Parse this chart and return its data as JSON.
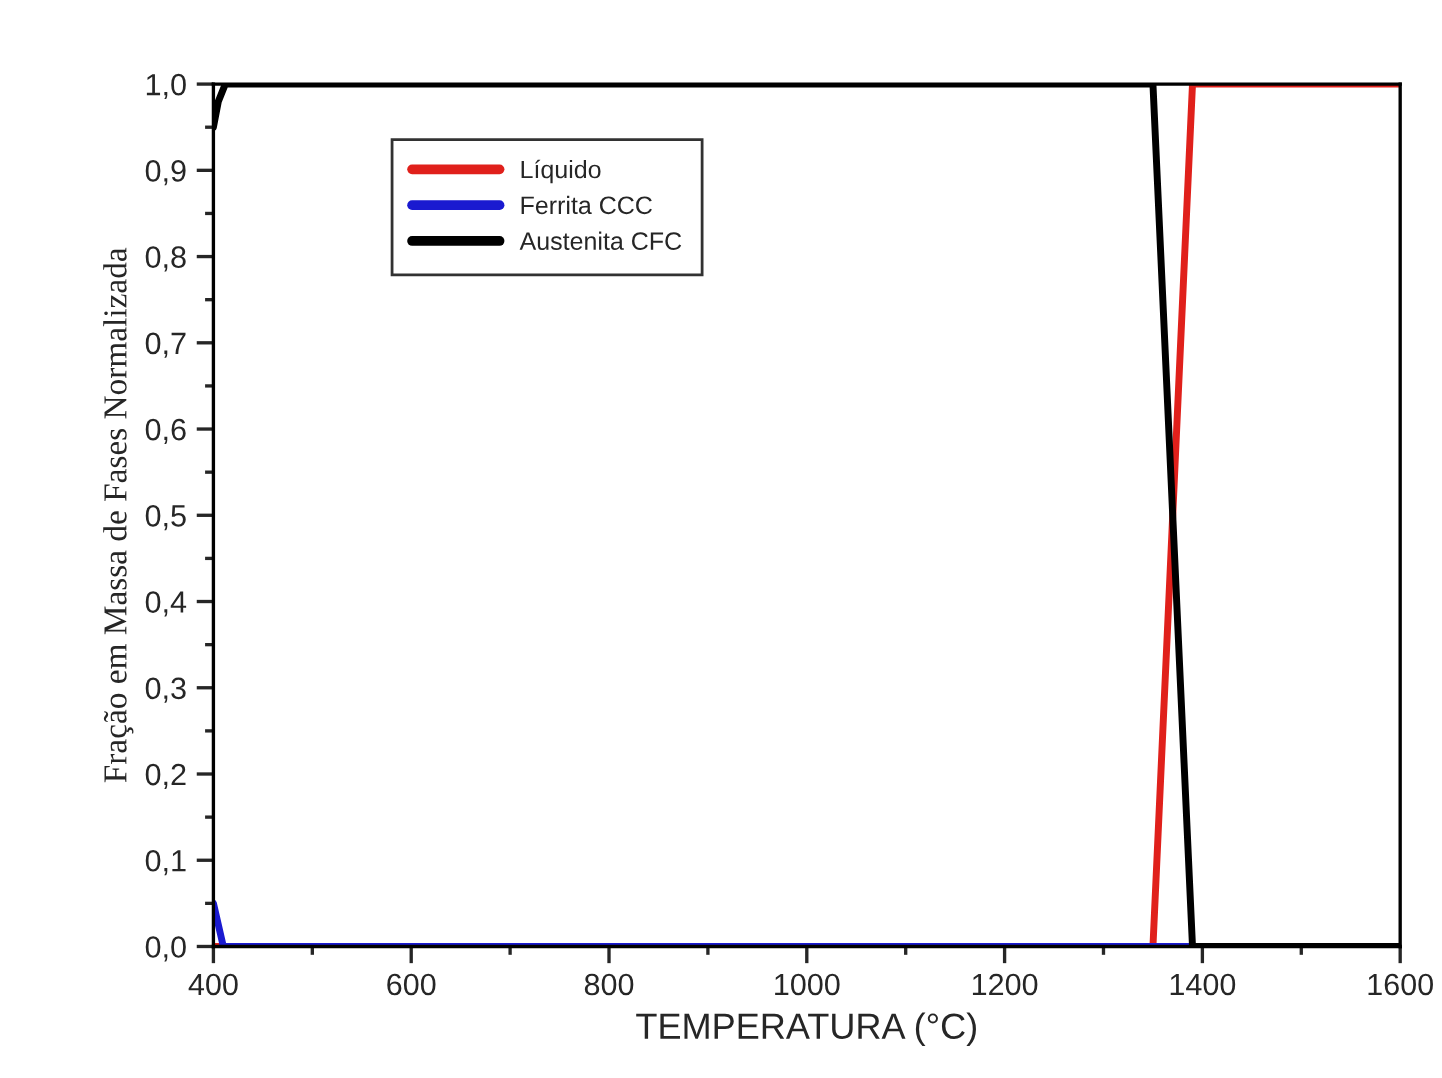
{
  "chart_data": {
    "type": "line",
    "xlabel": "TEMPERATURA (°C)",
    "ylabel": "Fração em Massa de Fases Normalizada",
    "series": [
      {
        "name": "Líquido",
        "color": "#e0201b",
        "x": [
          400,
          1350,
          1390,
          1600
        ],
        "values": [
          0,
          0,
          1.0,
          1.0
        ]
      },
      {
        "name": "Ferrita CCC",
        "color": "#1a1ad0",
        "x": [
          400,
          410,
          1350,
          1390
        ],
        "values": [
          0.05,
          0,
          0,
          0
        ]
      },
      {
        "name": "Austenita CFC",
        "color": "#000000",
        "x": [
          400,
          405,
          412,
          1350,
          1390,
          1600
        ],
        "values": [
          0.95,
          0.98,
          1.0,
          1.0,
          0,
          0
        ]
      }
    ],
    "xlim": [
      400,
      1600
    ],
    "xticks": [
      400,
      600,
      800,
      1000,
      1200,
      1400,
      1600
    ],
    "ylim": [
      0,
      1.0
    ],
    "yticks": [
      {
        "value": 0,
        "label": "0,0"
      },
      {
        "value": 0.1,
        "label": "0,1"
      },
      {
        "value": 0.2,
        "label": "0,2"
      },
      {
        "value": 0.3,
        "label": "0,3"
      },
      {
        "value": 0.4,
        "label": "0,4"
      },
      {
        "value": 0.5,
        "label": "0,5"
      },
      {
        "value": 0.6,
        "label": "0,6"
      },
      {
        "value": 0.7,
        "label": "0,7"
      },
      {
        "value": 0.8,
        "label": "0,8"
      },
      {
        "value": 0.9,
        "label": "0,9"
      },
      {
        "value": 1.0,
        "label": "1,0"
      }
    ],
    "grid": false,
    "legend": "top left",
    "marker": "none",
    "line_style": "solid"
  }
}
